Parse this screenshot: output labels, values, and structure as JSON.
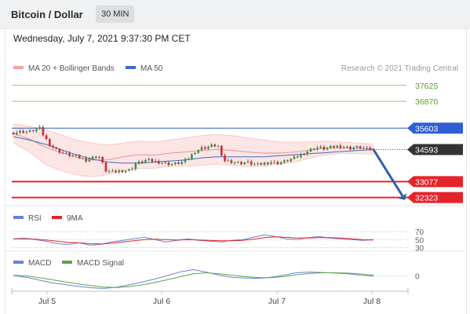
{
  "header": {
    "title": "Bitcoin / Dollar",
    "timeframe": "30 MIN"
  },
  "datetime": "Wednesday, July 7, 2021 9:37:30 PM CET",
  "legend": {
    "bollinger": "MA 20 + Bollinger Bands",
    "ma50": "MA 50",
    "credit": "Research © 2021 Trading Central",
    "rsi": "RSI",
    "rsi_ma": "9MA",
    "macd": "MACD",
    "macd_signal": "MACD Signal"
  },
  "colors": {
    "up": "#2e9e3e",
    "down": "#d9262b",
    "bollinger": "#f3a3a3",
    "ma50": "#3f6cc0",
    "resistance_green": "#8bc96a",
    "resistance_blue": "#2f5fd0",
    "support_red": "#e3252b",
    "current_price": "#333333",
    "rsi": "#6a82d6",
    "rsi_ma": "#e3252b",
    "macd": "#6a82d6",
    "macd_signal": "#5aa64a",
    "arrow": "#2d5fa8"
  },
  "chart_data": [
    {
      "type": "candlestick",
      "title": "Bitcoin / Dollar",
      "timeframe": "30 MIN",
      "x_ticks": [
        "Jul 5",
        "Jul 6",
        "Jul 7",
        "Jul 8"
      ],
      "ylim": [
        32200,
        37950
      ],
      "price_levels": [
        {
          "label": "37625",
          "value": 37625,
          "kind": "resistance"
        },
        {
          "label": "36870",
          "value": 36870,
          "kind": "resistance"
        },
        {
          "label": "35603",
          "value": 35603,
          "kind": "resistance"
        },
        {
          "label": "34593",
          "value": 34593,
          "kind": "current"
        },
        {
          "label": "33077",
          "value": 33077,
          "kind": "support"
        },
        {
          "label": "32323",
          "value": 32323,
          "kind": "support"
        }
      ],
      "forecast_arrow": {
        "from": 34593,
        "to": 32323
      },
      "close_path": [
        [
          0,
          35380
        ],
        [
          3,
          35450
        ],
        [
          5,
          35420
        ],
        [
          7,
          35530
        ],
        [
          9,
          35600
        ],
        [
          10,
          35230
        ],
        [
          12,
          34850
        ],
        [
          14,
          34600
        ],
        [
          16,
          34450
        ],
        [
          18,
          34350
        ],
        [
          20,
          34300
        ],
        [
          22,
          34200
        ],
        [
          24,
          34100
        ],
        [
          26,
          34200
        ],
        [
          28,
          34280
        ],
        [
          29,
          34180
        ],
        [
          30,
          33650
        ],
        [
          31,
          33550
        ],
        [
          33,
          33520
        ],
        [
          35,
          33580
        ],
        [
          37,
          33600
        ],
        [
          39,
          33640
        ],
        [
          40,
          33900
        ],
        [
          42,
          34000
        ],
        [
          44,
          34100
        ],
        [
          46,
          34050
        ],
        [
          48,
          34000
        ],
        [
          50,
          33950
        ],
        [
          52,
          33900
        ],
        [
          54,
          33930
        ],
        [
          56,
          34000
        ],
        [
          58,
          34200
        ],
        [
          60,
          34500
        ],
        [
          62,
          34650
        ],
        [
          64,
          34700
        ],
        [
          66,
          34800
        ],
        [
          68,
          34750
        ],
        [
          69,
          34100
        ],
        [
          71,
          34050
        ],
        [
          73,
          34000
        ],
        [
          75,
          33950
        ],
        [
          77,
          34000
        ],
        [
          79,
          33900
        ],
        [
          81,
          33870
        ],
        [
          83,
          33950
        ],
        [
          85,
          34000
        ],
        [
          87,
          33950
        ],
        [
          89,
          34000
        ],
        [
          91,
          34100
        ],
        [
          93,
          34200
        ],
        [
          95,
          34350
        ],
        [
          97,
          34500
        ],
        [
          99,
          34650
        ],
        [
          101,
          34680
        ],
        [
          103,
          34620
        ],
        [
          105,
          34700
        ],
        [
          107,
          34750
        ],
        [
          109,
          34720
        ],
        [
          111,
          34650
        ],
        [
          113,
          34700
        ],
        [
          115,
          34680
        ],
        [
          117,
          34600
        ],
        [
          119,
          34593
        ]
      ],
      "series": [
        {
          "name": "MA 50",
          "values": [
            35200,
            35050,
            34850,
            34600,
            34350,
            34150,
            34000,
            33950,
            33950,
            34000,
            34050,
            34100,
            34200,
            34250,
            34250,
            34250,
            34250,
            34300,
            34350,
            34400,
            34450,
            34500,
            34550,
            34593
          ]
        },
        {
          "name": "MA 20 + Bollinger Bands",
          "upper": [
            35800,
            35700,
            35550,
            35300,
            35050,
            34900,
            34800,
            34900,
            35000,
            34950,
            35050,
            35150,
            35250,
            35300,
            35250,
            35150,
            35050,
            34950,
            34950,
            34950,
            35000,
            34950,
            34900,
            34850
          ],
          "lower": [
            34900,
            34500,
            33900,
            33600,
            33400,
            33300,
            33400,
            33600,
            33700,
            33700,
            33800,
            33800,
            33850,
            33900,
            33850,
            33800,
            33800,
            33900,
            34000,
            34200,
            34350,
            34400,
            34400,
            34380
          ]
        }
      ]
    },
    {
      "type": "line",
      "name": "RSI",
      "y_ticks": [
        70,
        50,
        30
      ],
      "ylim": [
        25,
        80
      ],
      "series": [
        {
          "name": "RSI",
          "values": [
            52,
            54,
            50,
            46,
            40,
            38,
            42,
            36,
            38,
            44,
            48,
            52,
            56,
            50,
            44,
            48,
            52,
            48,
            46,
            44,
            48,
            50,
            56,
            62,
            58,
            52,
            50,
            55,
            58,
            54,
            52,
            50,
            48,
            50
          ]
        },
        {
          "name": "9MA",
          "values": [
            52,
            52,
            51,
            49,
            46,
            43,
            42,
            40,
            39,
            41,
            44,
            47,
            50,
            51,
            50,
            49,
            50,
            49,
            48,
            47,
            47,
            48,
            51,
            55,
            57,
            56,
            54,
            54,
            55,
            55,
            54,
            52,
            50,
            49
          ]
        }
      ]
    },
    {
      "type": "line",
      "name": "MACD",
      "y_ticks": [
        0
      ],
      "ylim": [
        -420,
        260
      ],
      "series": [
        {
          "name": "MACD",
          "values": [
            10,
            -40,
            -120,
            -200,
            -250,
            -300,
            -340,
            -360,
            -330,
            -260,
            -180,
            -90,
            10,
            120,
            180,
            110,
            20,
            -40,
            -60,
            -70,
            -40,
            20,
            90,
            110,
            100,
            80,
            60,
            20,
            -10
          ]
        },
        {
          "name": "MACD Signal",
          "values": [
            20,
            0,
            -50,
            -110,
            -170,
            -230,
            -280,
            -320,
            -335,
            -310,
            -260,
            -190,
            -110,
            -20,
            60,
            90,
            60,
            20,
            -20,
            -45,
            -50,
            -20,
            30,
            70,
            90,
            90,
            80,
            55,
            20
          ]
        }
      ]
    }
  ]
}
